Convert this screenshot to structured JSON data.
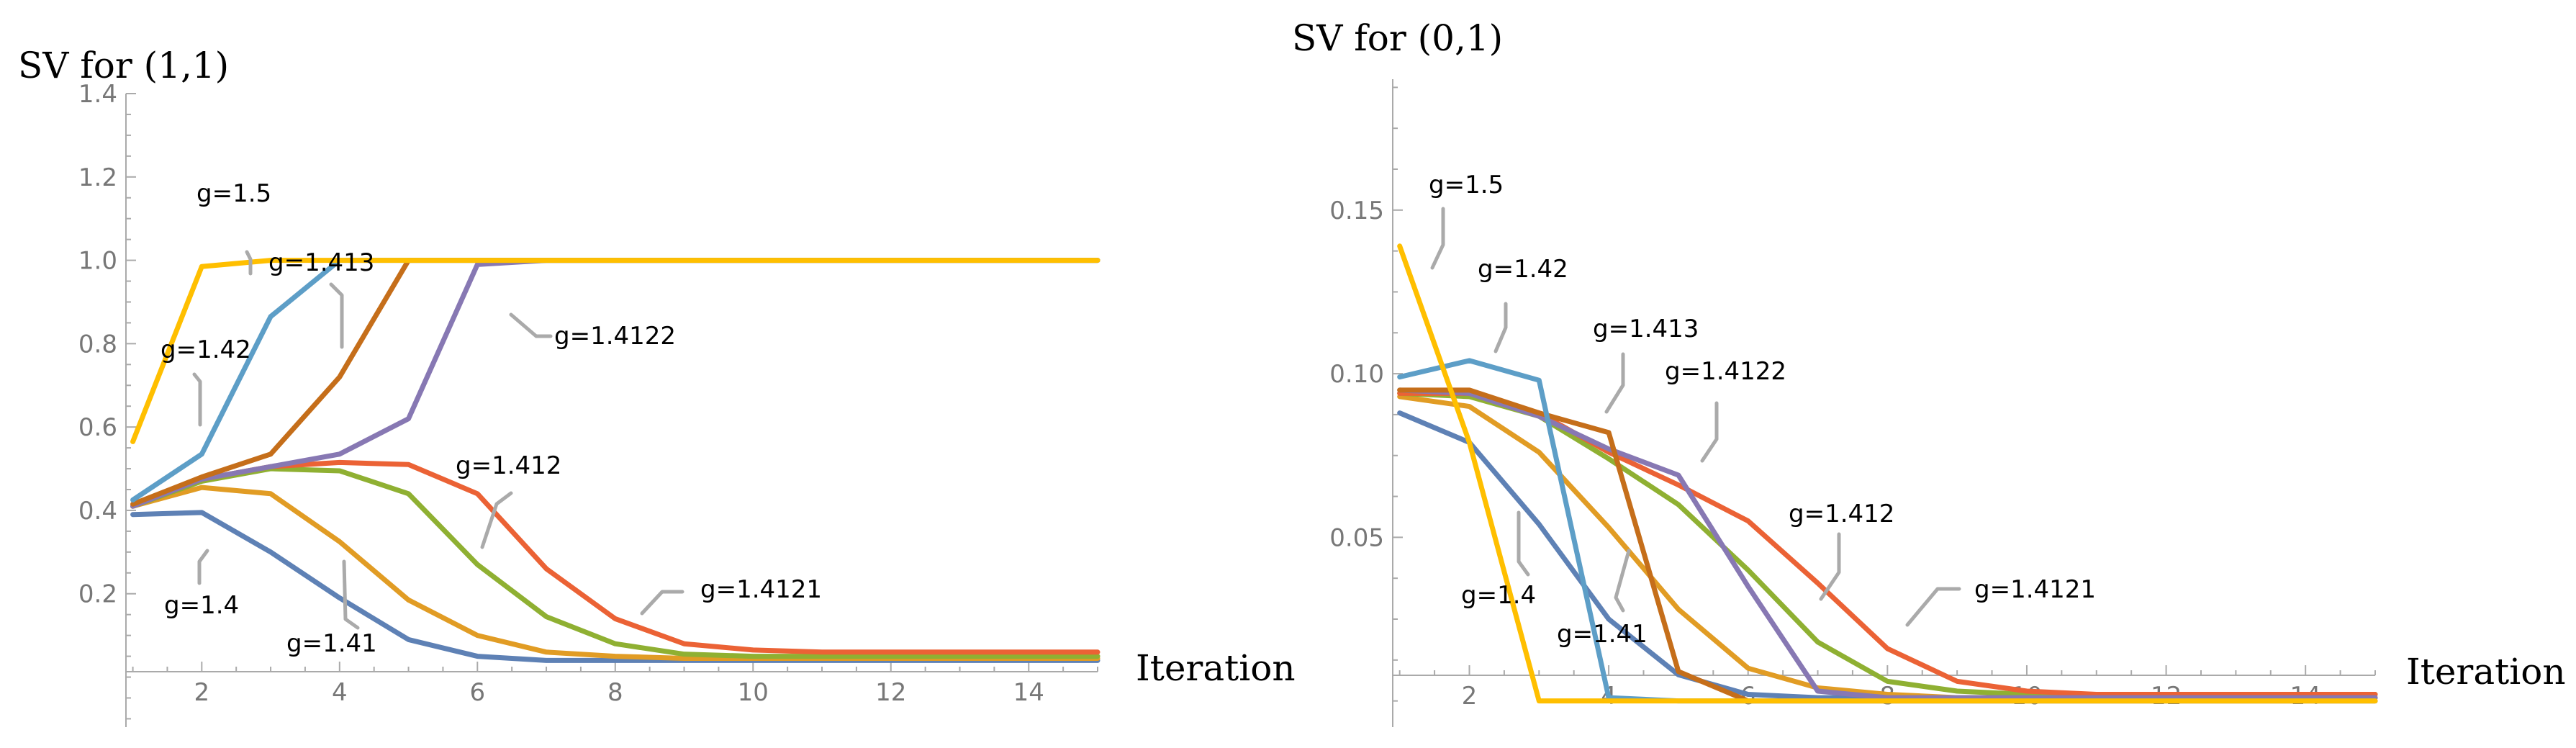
{
  "chart_data": [
    {
      "type": "line",
      "title": "SV for (1,1)",
      "xlabel": "Iteration",
      "ylabel": "SV for (1,1)",
      "xlim": [
        0.9,
        15
      ],
      "ylim": [
        -0.12,
        1.4
      ],
      "xticks": [
        2,
        4,
        6,
        8,
        10,
        12,
        14
      ],
      "xtick_labels": [
        "2",
        "4",
        "6",
        "8",
        "10",
        "12",
        "14"
      ],
      "yticks": [
        0.2,
        0.4,
        0.6,
        0.8,
        1.0,
        1.2,
        1.4
      ],
      "ytick_labels": [
        "0.2",
        "0.4",
        "0.6",
        "0.8",
        "1.0",
        "1.2",
        "1.4"
      ],
      "x": [
        1,
        2,
        3,
        4,
        5,
        6,
        7,
        8,
        9,
        10,
        11,
        12,
        13,
        14,
        15
      ],
      "series": [
        {
          "name": "g=1.4",
          "label": "g=1.4",
          "color": "#5e81b5",
          "values": [
            0.39,
            0.395,
            0.3,
            0.19,
            0.09,
            0.05,
            0.04,
            0.04,
            0.04,
            0.04,
            0.04,
            0.04,
            0.04,
            0.04,
            0.04
          ]
        },
        {
          "name": "g=1.41",
          "label": "g=1.41",
          "color": "#e19c24",
          "values": [
            0.41,
            0.455,
            0.44,
            0.325,
            0.185,
            0.1,
            0.06,
            0.05,
            0.045,
            0.045,
            0.045,
            0.045,
            0.045,
            0.045,
            0.045
          ]
        },
        {
          "name": "g=1.4121",
          "label": "g=1.4121",
          "color": "#8fb032",
          "values": [
            0.41,
            0.47,
            0.5,
            0.495,
            0.44,
            0.27,
            0.145,
            0.08,
            0.055,
            0.05,
            0.05,
            0.05,
            0.05,
            0.05,
            0.05
          ]
        },
        {
          "name": "g=1.412",
          "label": "g=1.412",
          "color": "#eb6235",
          "values": [
            0.41,
            0.475,
            0.505,
            0.515,
            0.51,
            0.44,
            0.26,
            0.14,
            0.08,
            0.065,
            0.06,
            0.06,
            0.06,
            0.06,
            0.06
          ]
        },
        {
          "name": "g=1.4122",
          "label": "g=1.4122",
          "color": "#8778b3",
          "values": [
            0.41,
            0.475,
            0.505,
            0.535,
            0.62,
            0.99,
            1.0,
            1.0,
            1.0,
            1.0,
            1.0,
            1.0,
            1.0,
            1.0,
            1.0
          ]
        },
        {
          "name": "g=1.413",
          "label": "g=1.413",
          "color": "#c56e1a",
          "values": [
            0.415,
            0.48,
            0.535,
            0.72,
            1.0,
            1.0,
            1.0,
            1.0,
            1.0,
            1.0,
            1.0,
            1.0,
            1.0,
            1.0,
            1.0
          ]
        },
        {
          "name": "g=1.42",
          "label": "g=1.42",
          "color": "#5d9ec7",
          "values": [
            0.425,
            0.535,
            0.865,
            1.0,
            1.0,
            1.0,
            1.0,
            1.0,
            1.0,
            1.0,
            1.0,
            1.0,
            1.0,
            1.0,
            1.0
          ]
        },
        {
          "name": "g=1.5",
          "label": "g=1.5",
          "color": "#ffbf00",
          "values": [
            0.565,
            0.985,
            1.0,
            1.0,
            1.0,
            1.0,
            1.0,
            1.0,
            1.0,
            1.0,
            1.0,
            1.0,
            1.0,
            1.0,
            1.0
          ]
        }
      ]
    },
    {
      "type": "line",
      "title": "SV for (0,1)",
      "xlabel": "Iteration",
      "ylabel": "SV for (0,1)",
      "xlim": [
        0.9,
        15
      ],
      "ylim": [
        -0.008,
        0.19
      ],
      "xticks": [
        2,
        4,
        6,
        8,
        10,
        12,
        14
      ],
      "xtick_labels": [
        "2",
        "4",
        "6",
        "8",
        "10",
        "12",
        "14"
      ],
      "yticks": [
        0.05,
        0.1,
        0.15
      ],
      "ytick_labels": [
        "0.05",
        "0.10",
        "0.15"
      ],
      "x": [
        1,
        2,
        3,
        4,
        5,
        6,
        7,
        8,
        9,
        10,
        11,
        12,
        13,
        14,
        15
      ],
      "series": [
        {
          "name": "g=1.4",
          "label": "g=1.4",
          "color": "#5e81b5",
          "values": [
            0.088,
            0.079,
            0.054,
            0.025,
            0.008,
            0.002,
            0.001,
            0.001,
            0.001,
            0.001,
            0.001,
            0.001,
            0.001,
            0.001,
            0.001
          ]
        },
        {
          "name": "g=1.41",
          "label": "g=1.41",
          "color": "#e19c24",
          "values": [
            0.093,
            0.09,
            0.076,
            0.053,
            0.028,
            0.01,
            0.004,
            0.002,
            0.001,
            0.001,
            0.001,
            0.001,
            0.001,
            0.001,
            0.001
          ]
        },
        {
          "name": "g=1.4121",
          "label": "g=1.4121",
          "color": "#8fb032",
          "values": [
            0.094,
            0.093,
            0.087,
            0.074,
            0.06,
            0.04,
            0.018,
            0.006,
            0.003,
            0.002,
            0.002,
            0.002,
            0.002,
            0.002,
            0.002
          ]
        },
        {
          "name": "g=1.412",
          "label": "g=1.412",
          "color": "#eb6235",
          "values": [
            0.094,
            0.094,
            0.088,
            0.076,
            0.066,
            0.055,
            0.036,
            0.016,
            0.006,
            0.003,
            0.002,
            0.002,
            0.002,
            0.002,
            0.002
          ]
        },
        {
          "name": "g=1.4122",
          "label": "g=1.4122",
          "color": "#8778b3",
          "values": [
            0.095,
            0.094,
            0.087,
            0.077,
            0.069,
            0.035,
            0.003,
            0.001,
            0.001,
            0.001,
            0.001,
            0.001,
            0.001,
            0.001,
            0.001
          ]
        },
        {
          "name": "g=1.413",
          "label": "g=1.413",
          "color": "#c56e1a",
          "values": [
            0.095,
            0.095,
            0.088,
            0.082,
            0.009,
            0.0,
            0.0,
            0.0,
            0.0,
            0.0,
            0.0,
            0.0,
            0.0,
            0.0,
            0.0
          ]
        },
        {
          "name": "g=1.42",
          "label": "g=1.42",
          "color": "#5d9ec7",
          "values": [
            0.099,
            0.104,
            0.098,
            0.001,
            0.0,
            0.0,
            0.0,
            0.0,
            0.0,
            0.0,
            0.0,
            0.0,
            0.0,
            0.0,
            0.0
          ]
        },
        {
          "name": "g=1.5",
          "label": "g=1.5",
          "color": "#ffbf00",
          "values": [
            0.139,
            0.079,
            0.0,
            0.0,
            0.0,
            0.0,
            0.0,
            0.0,
            0.0,
            0.0,
            0.0,
            0.0,
            0.0,
            0.0,
            0.0
          ]
        }
      ]
    }
  ]
}
